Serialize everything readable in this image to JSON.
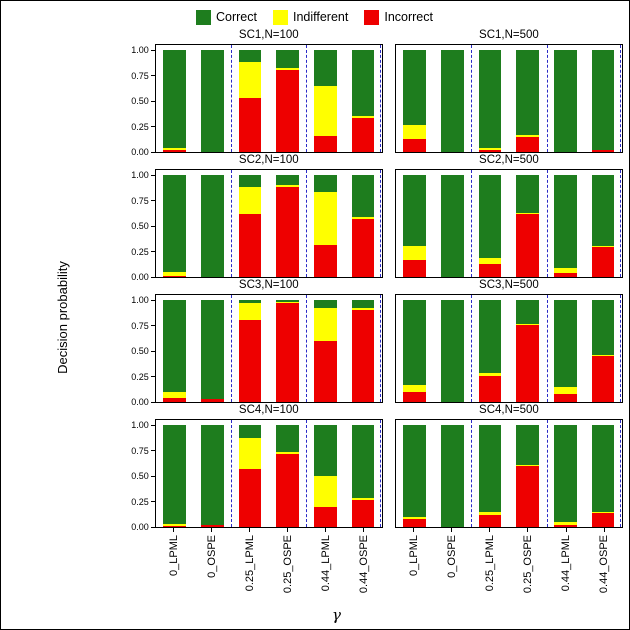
{
  "legend": {
    "items": [
      {
        "key": "correct",
        "label": "Correct"
      },
      {
        "key": "indifferent",
        "label": "Indifferent"
      },
      {
        "key": "incorrect",
        "label": "Incorrect"
      }
    ]
  },
  "chart_data": {
    "type": "bar",
    "stacked": true,
    "title": "",
    "ylabel": "Decision probability",
    "xlabel": "γ",
    "ylim": [
      0,
      1
    ],
    "yticks": [
      "1.00",
      "0.75",
      "0.50",
      "0.25",
      "0.00"
    ],
    "categories": [
      "0_LPML",
      "0_OSPE",
      "0.25_LPML",
      "0.25_OSPE",
      "0.44_LPML",
      "0.44_OSPE"
    ],
    "stack_order_bottom_up": [
      "incorrect",
      "indifferent",
      "correct"
    ],
    "legend": [
      "Correct",
      "Indifferent",
      "Incorrect"
    ],
    "legend_position": "top",
    "colors": {
      "correct": "#1e7d1e",
      "indifferent": "#ffff00",
      "incorrect": "#ee0000"
    },
    "separator_color": "#2b2bc8",
    "separator_style": "dashed",
    "panels": [
      {
        "title": "SC1,N=100",
        "series": {
          "incorrect": [
            0.02,
            0.0,
            0.53,
            0.8,
            0.16,
            0.33
          ],
          "indifferent": [
            0.02,
            0.0,
            0.35,
            0.02,
            0.49,
            0.02
          ],
          "correct": [
            0.96,
            1.0,
            0.12,
            0.18,
            0.35,
            0.65
          ]
        }
      },
      {
        "title": "SC1,N=500",
        "series": {
          "incorrect": [
            0.13,
            0.0,
            0.02,
            0.15,
            0.0,
            0.02
          ],
          "indifferent": [
            0.13,
            0.0,
            0.02,
            0.02,
            0.0,
            0.0
          ],
          "correct": [
            0.74,
            1.0,
            0.96,
            0.83,
            1.0,
            0.98
          ]
        }
      },
      {
        "title": "SC2,N=100",
        "series": {
          "incorrect": [
            0.01,
            0.0,
            0.62,
            0.88,
            0.31,
            0.57
          ],
          "indifferent": [
            0.04,
            0.0,
            0.26,
            0.02,
            0.52,
            0.02
          ],
          "correct": [
            0.95,
            1.0,
            0.12,
            0.1,
            0.17,
            0.41
          ]
        }
      },
      {
        "title": "SC2,N=500",
        "series": {
          "incorrect": [
            0.17,
            0.0,
            0.13,
            0.62,
            0.04,
            0.29
          ],
          "indifferent": [
            0.13,
            0.0,
            0.06,
            0.01,
            0.05,
            0.01
          ],
          "correct": [
            0.7,
            1.0,
            0.81,
            0.37,
            0.91,
            0.7
          ]
        }
      },
      {
        "title": "SC3,N=100",
        "series": {
          "incorrect": [
            0.04,
            0.03,
            0.8,
            0.97,
            0.6,
            0.9
          ],
          "indifferent": [
            0.06,
            0.0,
            0.17,
            0.01,
            0.32,
            0.02
          ],
          "correct": [
            0.9,
            0.97,
            0.03,
            0.02,
            0.08,
            0.08
          ]
        }
      },
      {
        "title": "SC3,N=500",
        "series": {
          "incorrect": [
            0.1,
            0.0,
            0.25,
            0.75,
            0.08,
            0.45
          ],
          "indifferent": [
            0.07,
            0.0,
            0.03,
            0.01,
            0.07,
            0.01
          ],
          "correct": [
            0.83,
            1.0,
            0.72,
            0.24,
            0.85,
            0.54
          ]
        }
      },
      {
        "title": "SC4,N=100",
        "series": {
          "incorrect": [
            0.01,
            0.02,
            0.57,
            0.72,
            0.2,
            0.26
          ],
          "indifferent": [
            0.02,
            0.0,
            0.3,
            0.02,
            0.3,
            0.02
          ],
          "correct": [
            0.97,
            0.98,
            0.13,
            0.26,
            0.5,
            0.72
          ]
        }
      },
      {
        "title": "SC4,N=500",
        "series": {
          "incorrect": [
            0.08,
            0.0,
            0.12,
            0.6,
            0.02,
            0.14
          ],
          "indifferent": [
            0.02,
            0.0,
            0.03,
            0.01,
            0.03,
            0.01
          ],
          "correct": [
            0.9,
            1.0,
            0.85,
            0.39,
            0.95,
            0.85
          ]
        }
      }
    ]
  }
}
